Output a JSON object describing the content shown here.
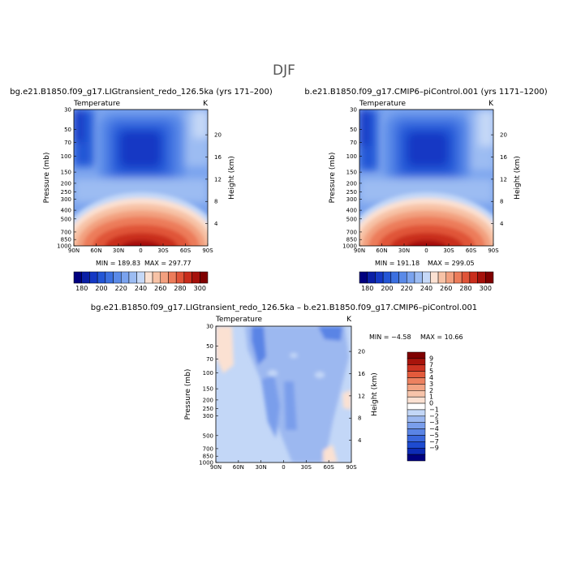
{
  "season": "DJF",
  "difference_title": "bg.e21.B1850.f09_g17.LIGtransient_redo_126.5ka – b.e21.B1850.f09_g17.CMIP6–piControl.001",
  "colors": {
    "abs_palette": [
      "#00007f",
      "#0a1fa6",
      "#1438c4",
      "#2356d6",
      "#3c70e0",
      "#5a8ae8",
      "#7aa3ee",
      "#9cbcf2",
      "#c5d8f7",
      "#fbe1d2",
      "#f7c2a6",
      "#f2a07f",
      "#ec7c5a",
      "#e05438",
      "#c92d1c",
      "#a6110b",
      "#7f0000"
    ],
    "diff_palette": [
      "#00007f",
      "#0d2bb5",
      "#1e4bd0",
      "#3a67dc",
      "#5a84e5",
      "#7a9eeb",
      "#9cb8f0",
      "#c3d7f7",
      "#ffffff",
      "#fbe1d2",
      "#f7c4aa",
      "#f2a383",
      "#ec8160",
      "#e35b3c",
      "#cc3322",
      "#a8140c",
      "#7f0000"
    ]
  },
  "chart_data": [
    {
      "type": "heatmap",
      "title": "bg.e21.B1850.f09_g17.LIGtransient_redo_126.5ka (yrs 171–200)",
      "variable": "Temperature",
      "units": "K",
      "ylabel": "Pressure (mb)",
      "y2label": "Height (km)",
      "xticks": [
        "90N",
        "60N",
        "30N",
        "0",
        "30S",
        "60S",
        "90S"
      ],
      "yticks": [
        "30",
        "50",
        "70",
        "100",
        "150",
        "200",
        "250",
        "300",
        "400",
        "500",
        "700",
        "850",
        "1000"
      ],
      "y2ticks": [
        "20",
        "16",
        "12",
        "8",
        "4"
      ],
      "min_label": "MIN = 189.83",
      "max_label": "MAX = 297.77",
      "min": 189.83,
      "max": 297.77,
      "colorbar_ticks": [
        "180",
        "190",
        "200",
        "210",
        "220",
        "230",
        "240",
        "250",
        "260",
        "270",
        "280",
        "290",
        "300"
      ]
    },
    {
      "type": "heatmap",
      "title": "b.e21.B1850.f09_g17.CMIP6–piControl.001 (yrs 1171–1200)",
      "variable": "Temperature",
      "units": "K",
      "ylabel": "Pressure (mb)",
      "y2label": "Height (km)",
      "xticks": [
        "90N",
        "60N",
        "30N",
        "0",
        "30S",
        "60S",
        "90S"
      ],
      "yticks": [
        "30",
        "50",
        "70",
        "100",
        "150",
        "200",
        "250",
        "300",
        "400",
        "500",
        "700",
        "850",
        "1000"
      ],
      "y2ticks": [
        "20",
        "16",
        "12",
        "8",
        "4"
      ],
      "min_label": "MIN = 191.18",
      "max_label": "MAX = 299.05",
      "min": 191.18,
      "max": 299.05,
      "colorbar_ticks": [
        "180",
        "190",
        "200",
        "210",
        "220",
        "230",
        "240",
        "250",
        "260",
        "270",
        "280",
        "290",
        "300"
      ]
    },
    {
      "type": "heatmap",
      "variable": "Temperature",
      "units": "K",
      "ylabel": "Pressure (mb)",
      "y2label": "Height (km)",
      "xticks": [
        "90N",
        "60N",
        "30N",
        "0",
        "30S",
        "60S",
        "90S"
      ],
      "yticks": [
        "30",
        "50",
        "70",
        "100",
        "150",
        "200",
        "250",
        "300",
        "500",
        "700",
        "850",
        "1000"
      ],
      "y2ticks": [
        "20",
        "16",
        "12",
        "8",
        "4"
      ],
      "min_label": "MIN = −4.58",
      "max_label": "MAX = 10.66",
      "min": -4.58,
      "max": 10.66,
      "colorbar_ticks": [
        "9",
        "7",
        "5",
        "4",
        "3",
        "2",
        "1",
        "0",
        "−1",
        "−2",
        "−3",
        "−4",
        "−5",
        "−7",
        "−9"
      ]
    }
  ]
}
